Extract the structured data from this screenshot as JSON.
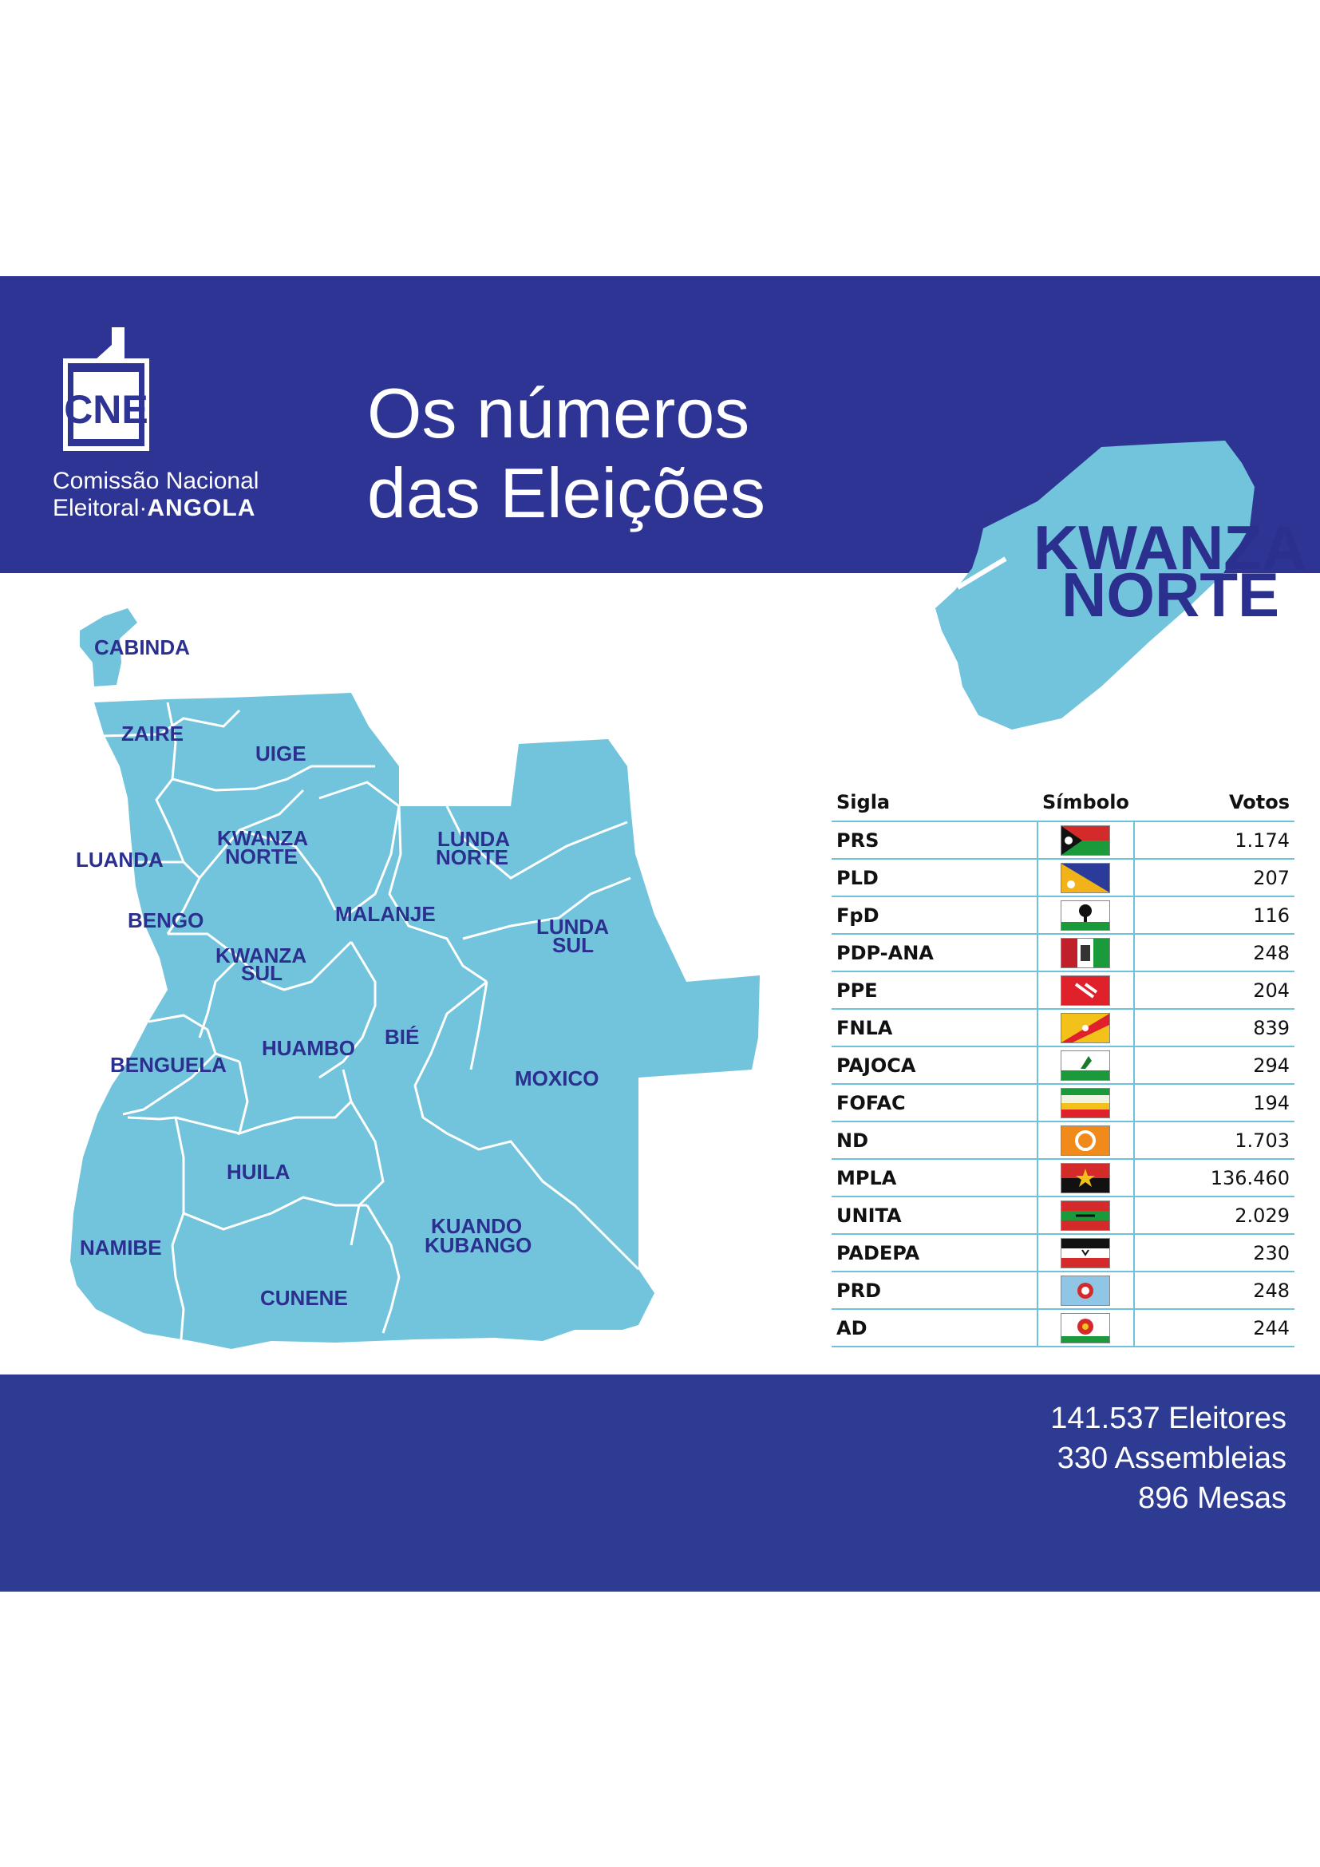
{
  "header": {
    "logo_mark": "CNE",
    "logo_line1": "Comissão Nacional",
    "logo_line2_a": "Eleitoral",
    "logo_line2_sep": "·",
    "logo_line2_b": "ANGOLA",
    "title_line1": "Os números",
    "title_line2": "das Eleições"
  },
  "colors": {
    "band": "#2e3494",
    "map_fill": "#72c3dc",
    "label": "#2b2f8e",
    "divider": "#6ec2dc"
  },
  "inset": {
    "line1": "KWANZA",
    "line2": "NORTE"
  },
  "map_labels": {
    "cabinda": "CABINDA",
    "zaire": "ZAIRE",
    "uige": "UIGE",
    "luanda": "LUANDA",
    "kwanza_norte_1": "KWANZA",
    "kwanza_norte_2": "NORTE",
    "lunda_norte_1": "LUNDA",
    "lunda_norte_2": "NORTE",
    "bengo": "BENGO",
    "malanje": "MALANJE",
    "lunda_sul_1": "LUNDA",
    "lunda_sul_2": "SUL",
    "kwanza_sul_1": "KWANZA",
    "kwanza_sul_2": "SUL",
    "benguela": "BENGUELA",
    "huambo": "HUAMBO",
    "bie": "BIÉ",
    "moxico": "MOXICO",
    "huila": "HUILA",
    "namibe": "NAMIBE",
    "kuando_1": "KUANDO",
    "kuando_2": "KUBANGO",
    "cunene": "CUNENE"
  },
  "table": {
    "headers": {
      "sigla": "Sigla",
      "simbolo": "Símbolo",
      "votos": "Votos"
    },
    "rows": [
      {
        "sigla": "PRS",
        "votos": "1.174",
        "flag": "prs-flag"
      },
      {
        "sigla": "PLD",
        "votos": "207",
        "flag": "pld-flag"
      },
      {
        "sigla": "FpD",
        "votos": "116",
        "flag": "fpd-flag"
      },
      {
        "sigla": "PDP-ANA",
        "votos": "248",
        "flag": "pdp-ana-flag"
      },
      {
        "sigla": "PPE",
        "votos": "204",
        "flag": "ppe-flag"
      },
      {
        "sigla": "FNLA",
        "votos": "839",
        "flag": "fnla-flag"
      },
      {
        "sigla": "PAJOCA",
        "votos": "294",
        "flag": "pajoca-flag"
      },
      {
        "sigla": "FOFAC",
        "votos": "194",
        "flag": "fofac-flag"
      },
      {
        "sigla": "ND",
        "votos": "1.703",
        "flag": "nd-flag"
      },
      {
        "sigla": "MPLA",
        "votos": "136.460",
        "flag": "mpla-flag"
      },
      {
        "sigla": "UNITA",
        "votos": "2.029",
        "flag": "unita-flag"
      },
      {
        "sigla": "PADEPA",
        "votos": "230",
        "flag": "padepa-flag"
      },
      {
        "sigla": "PRD",
        "votos": "248",
        "flag": "prd-flag"
      },
      {
        "sigla": "AD",
        "votos": "244",
        "flag": "ad-flag"
      }
    ]
  },
  "stats": {
    "eleitores": "141.537 Eleitores",
    "assembleias": "330 Assembleias",
    "mesas": "896 Mesas"
  }
}
